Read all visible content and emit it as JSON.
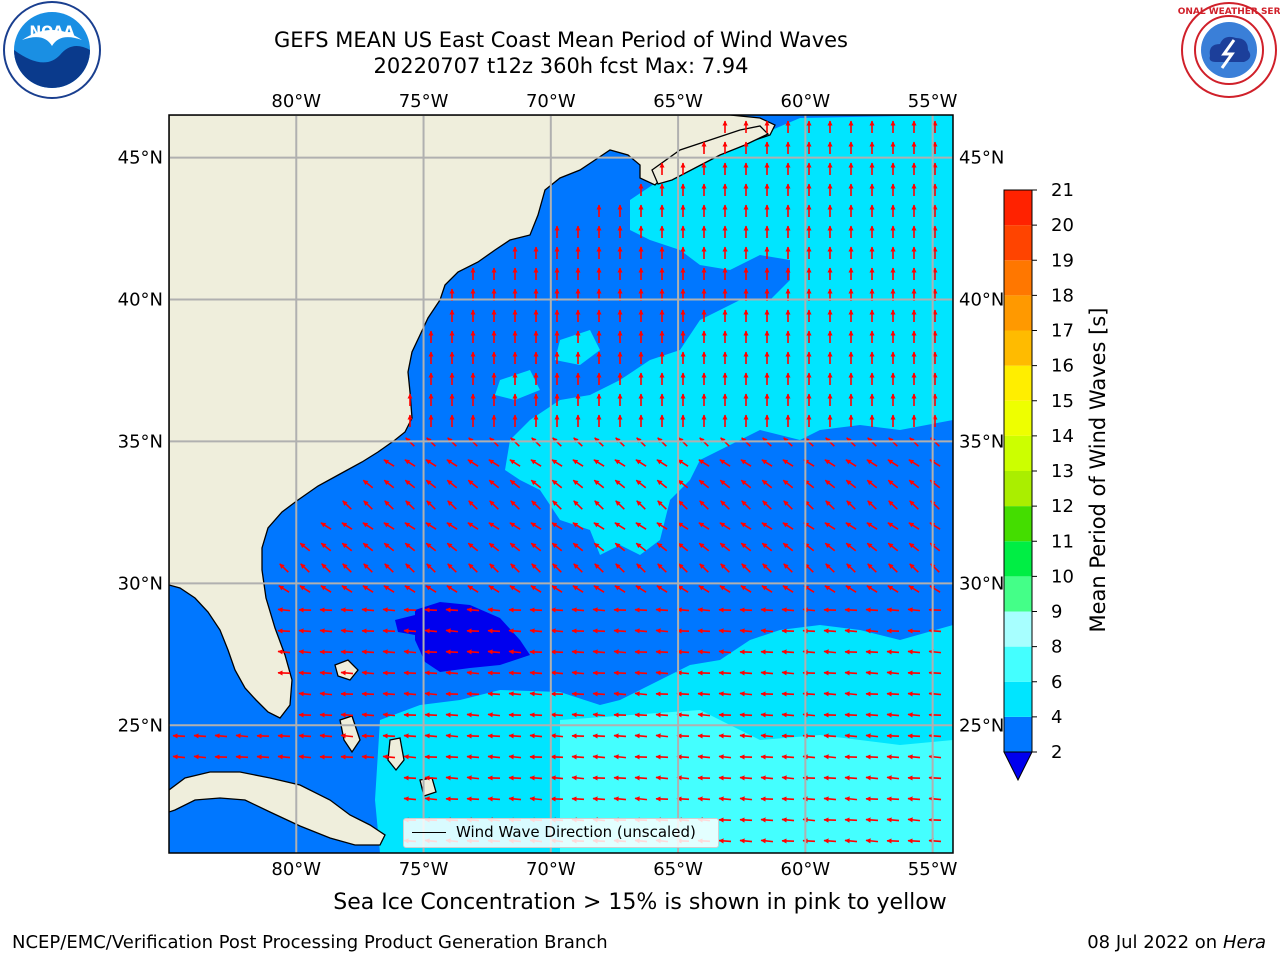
{
  "header": {
    "title_line1": "GEFS MEAN US East Coast Mean Period of Wind Waves",
    "title_line2": "20220707 t12z 360h fcst   Max: 7.94"
  },
  "logos": {
    "left": "NOAA",
    "right": "NATIONAL WEATHER SERVICE"
  },
  "map": {
    "lon_ticks": [
      "80°W",
      "75°W",
      "70°W",
      "65°W",
      "60°W",
      "55°W"
    ],
    "lat_ticks": [
      "45°N",
      "40°N",
      "35°N",
      "30°N",
      "25°N"
    ],
    "lon_range": [
      -85,
      -54.2
    ],
    "lat_range": [
      20.5,
      46.5
    ],
    "legend_label": "Wind Wave Direction (unscaled)",
    "arrow_color": "#ff0000",
    "land_color": "#efeedc",
    "grid_color": "#b0b0b0"
  },
  "colorbar": {
    "title": "Mean Period of Wind Waves [s]",
    "ticks": [
      "2",
      "4",
      "6",
      "8",
      "9",
      "10",
      "11",
      "12",
      "13",
      "14",
      "15",
      "16",
      "17",
      "18",
      "19",
      "20",
      "21"
    ],
    "colors": [
      "#0077ff",
      "#00e5ff",
      "#44ffff",
      "#a7ffff",
      "#44ff88",
      "#00ee44",
      "#44dd00",
      "#aaee00",
      "#ccff00",
      "#eeff00",
      "#ffee00",
      "#ffbb00",
      "#ff9900",
      "#ff7700",
      "#ff4400",
      "#ff2200",
      "#ff0000"
    ],
    "under_color": "#0000ee"
  },
  "caption": "Sea Ice Concentration > 15% is shown in pink to yellow",
  "footer": {
    "left": "NCEP/EMC/Verification Post Processing Product Generation Branch",
    "date": "08 Jul 2022 on",
    "host": "Hera"
  }
}
